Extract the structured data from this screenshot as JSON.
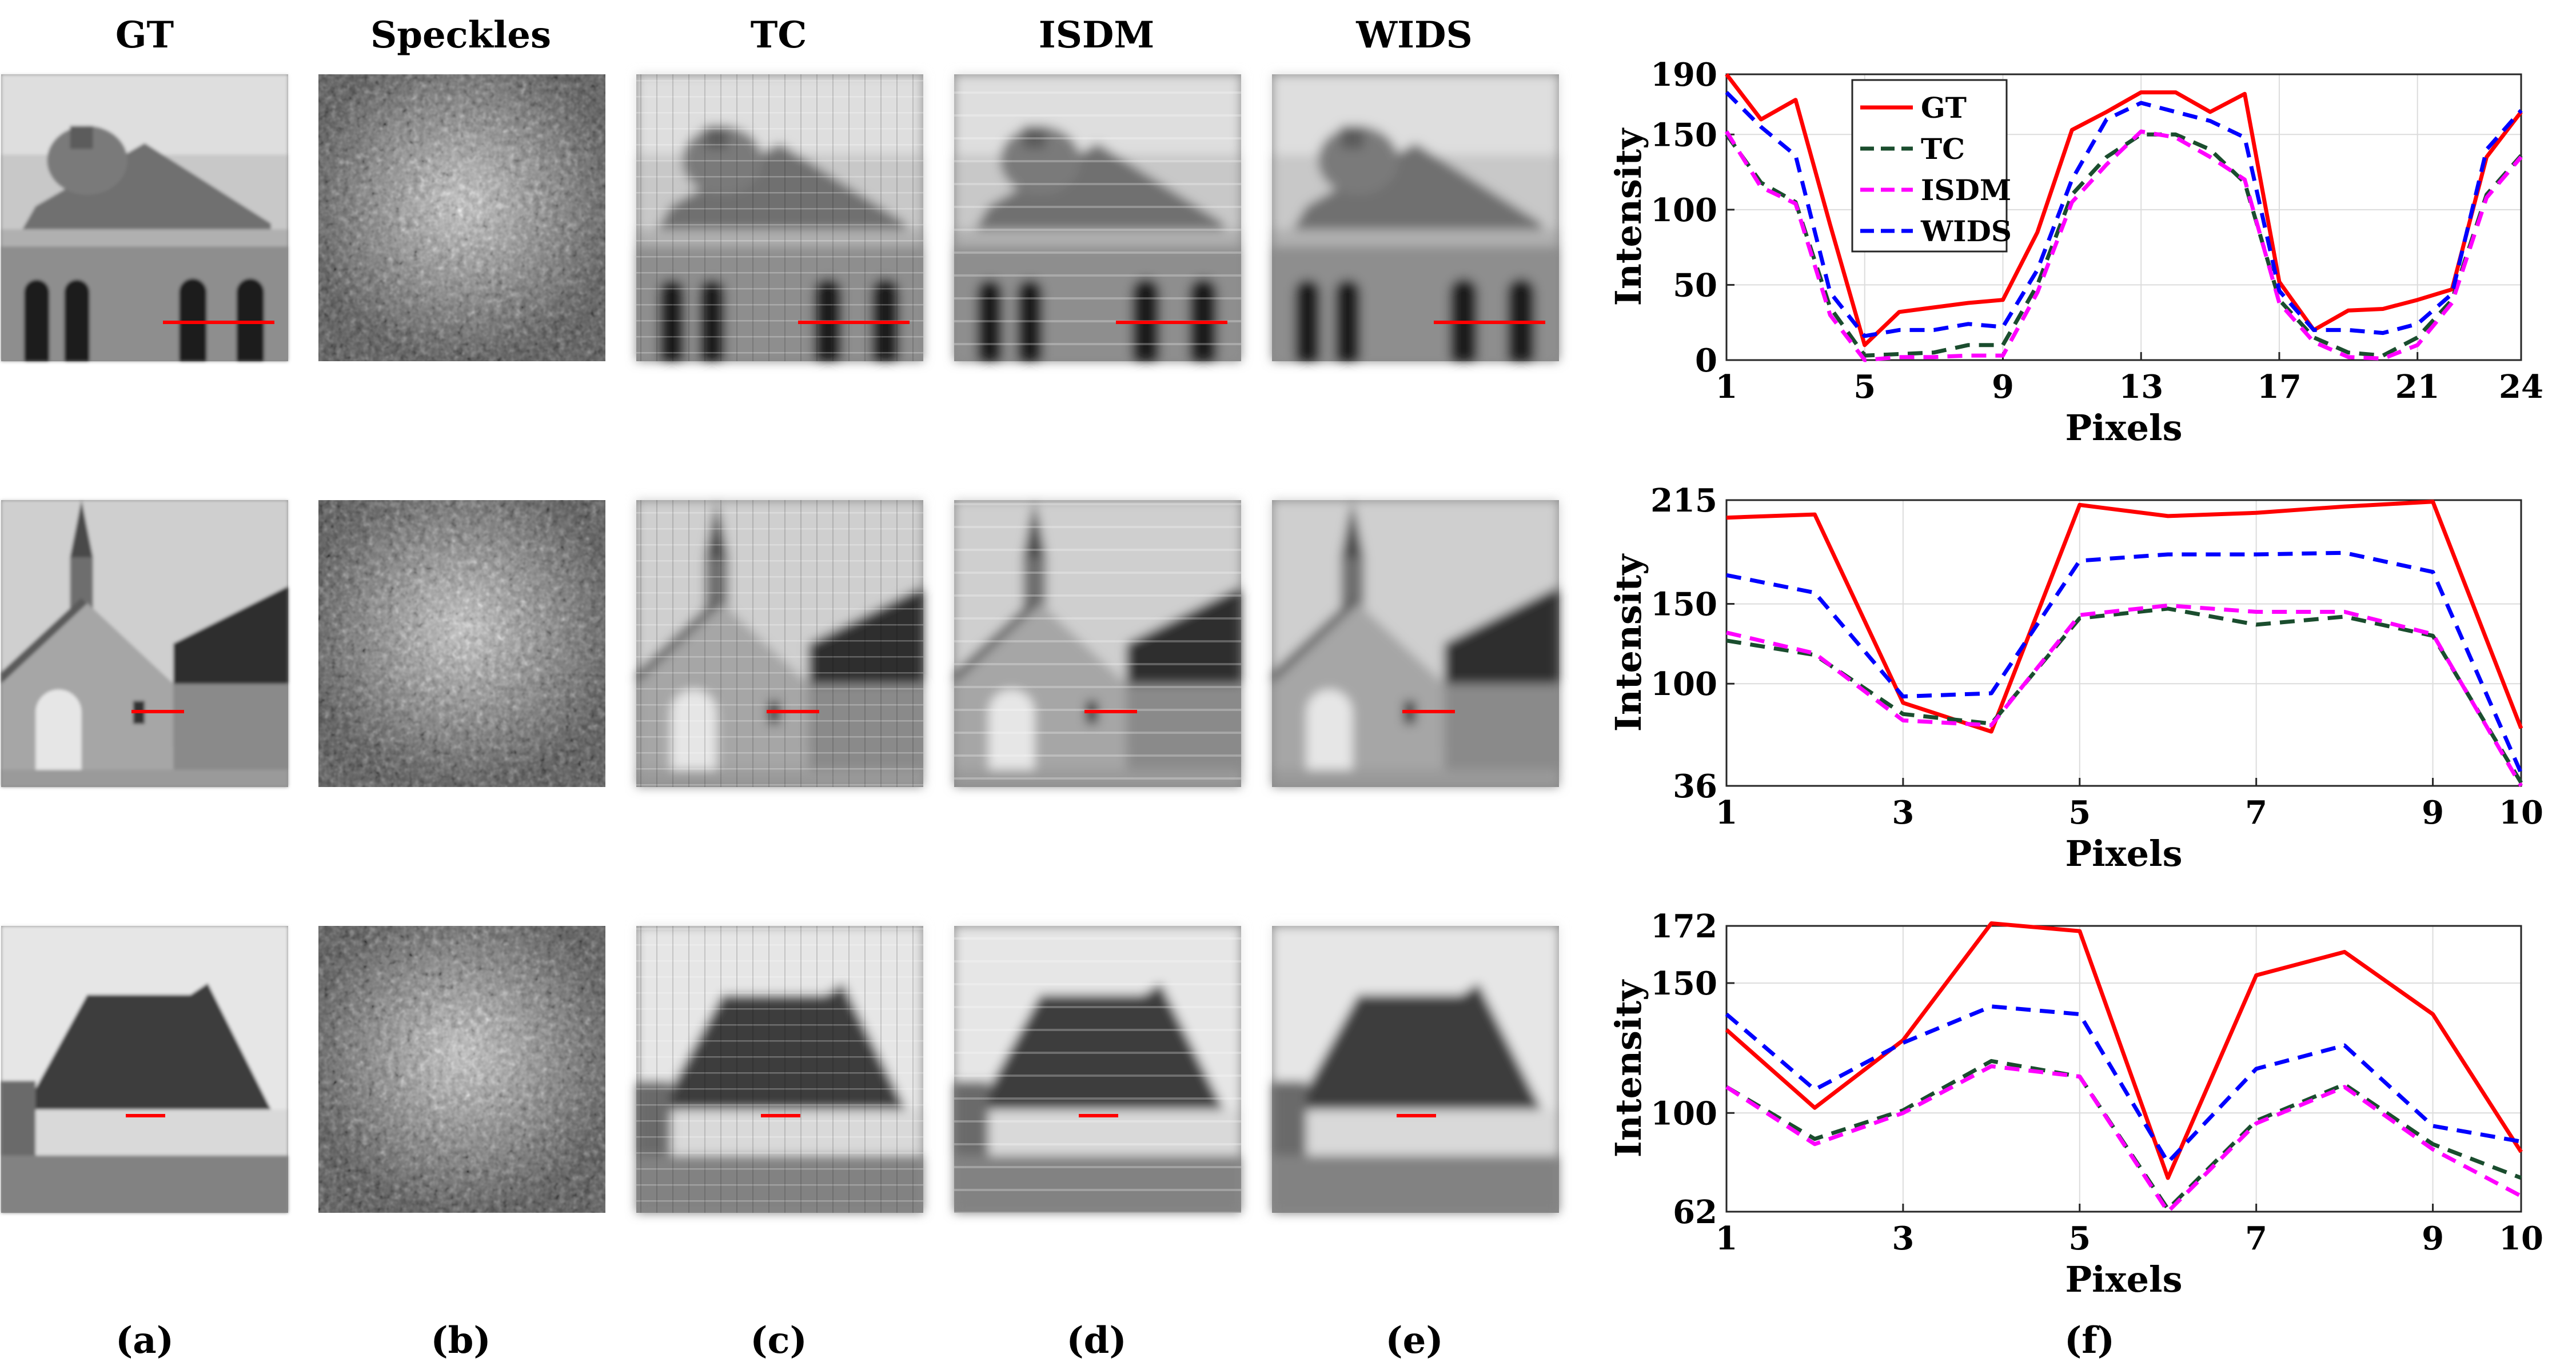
{
  "columns": [
    "GT",
    "Speckles",
    "TC",
    "ISDM",
    "WIDS"
  ],
  "panel_labels": [
    "(a)",
    "(b)",
    "(c)",
    "(d)",
    "(e)",
    "(f)"
  ],
  "colors": {
    "gt_line": "#ff0000",
    "tc_line": "#1a4d2e",
    "isdm_line": "#ff00ff",
    "wids_line": "#0000ff",
    "profile_marker": "#ff0000"
  },
  "image_rows": [
    {
      "scene": "domed stone building"
    },
    {
      "scene": "church with steeple"
    },
    {
      "scene": "chapel on lawn"
    }
  ],
  "chart_data": [
    {
      "type": "line",
      "xlabel": "Pixels",
      "ylabel": "Intensity",
      "xlim": [
        1,
        24
      ],
      "ylim": [
        0,
        190
      ],
      "xticks": [
        1,
        5,
        9,
        13,
        17,
        21,
        24
      ],
      "yticks": [
        0,
        50,
        100,
        150,
        190
      ],
      "legend": {
        "position": "top-left",
        "entries": [
          "GT",
          "TC",
          "ISDM",
          "WIDS"
        ]
      },
      "x": [
        1,
        2,
        3,
        4,
        5,
        6,
        7,
        8,
        9,
        10,
        11,
        12,
        13,
        14,
        15,
        16,
        17,
        18,
        19,
        20,
        21,
        22,
        23,
        24
      ],
      "series": [
        {
          "name": "GT",
          "style": "solid",
          "values": [
            190,
            160,
            173,
            90,
            10,
            32,
            35,
            38,
            40,
            85,
            153,
            165,
            178,
            178,
            165,
            177,
            52,
            20,
            33,
            34,
            40,
            47,
            135,
            165
          ]
        },
        {
          "name": "TC",
          "style": "dashed",
          "values": [
            150,
            118,
            105,
            35,
            3,
            4,
            5,
            10,
            10,
            50,
            110,
            135,
            150,
            150,
            140,
            118,
            40,
            15,
            5,
            3,
            15,
            40,
            110,
            136
          ]
        },
        {
          "name": "ISDM",
          "style": "dashed",
          "values": [
            152,
            115,
            104,
            30,
            0,
            2,
            2,
            3,
            3,
            45,
            105,
            130,
            152,
            148,
            135,
            120,
            38,
            12,
            2,
            1,
            10,
            38,
            108,
            135
          ]
        },
        {
          "name": "WIDS",
          "style": "dashed",
          "values": [
            178,
            155,
            136,
            45,
            16,
            20,
            20,
            24,
            22,
            60,
            120,
            160,
            171,
            165,
            159,
            148,
            46,
            20,
            20,
            18,
            24,
            44,
            140,
            166
          ]
        }
      ]
    },
    {
      "type": "line",
      "xlabel": "Pixels",
      "ylabel": "Intensity",
      "xlim": [
        1,
        10
      ],
      "ylim": [
        36,
        215
      ],
      "xticks": [
        1,
        3,
        5,
        7,
        9,
        10
      ],
      "yticks": [
        36,
        100,
        150,
        215
      ],
      "x": [
        1,
        2,
        3,
        4,
        5,
        6,
        7,
        8,
        9,
        10
      ],
      "series": [
        {
          "name": "GT",
          "style": "solid",
          "values": [
            204,
            206,
            88,
            70,
            212,
            205,
            207,
            211,
            214,
            72
          ]
        },
        {
          "name": "TC",
          "style": "dashed",
          "values": [
            127,
            118,
            81,
            75,
            141,
            147,
            137,
            142,
            130,
            38
          ]
        },
        {
          "name": "ISDM",
          "style": "dashed",
          "values": [
            132,
            119,
            77,
            74,
            143,
            149,
            145,
            145,
            131,
            36
          ]
        },
        {
          "name": "WIDS",
          "style": "dashed",
          "values": [
            168,
            157,
            92,
            94,
            177,
            181,
            181,
            182,
            170,
            44
          ]
        }
      ]
    },
    {
      "type": "line",
      "xlabel": "Pixels",
      "ylabel": "Intensity",
      "xlim": [
        1,
        10
      ],
      "ylim": [
        62,
        172
      ],
      "xticks": [
        1,
        3,
        5,
        7,
        9,
        10
      ],
      "yticks": [
        62,
        100,
        150,
        172
      ],
      "x": [
        1,
        2,
        3,
        4,
        5,
        6,
        7,
        8,
        9,
        10
      ],
      "series": [
        {
          "name": "GT",
          "style": "solid",
          "values": [
            132,
            102,
            128,
            173,
            170,
            75,
            153,
            162,
            138,
            85
          ]
        },
        {
          "name": "TC",
          "style": "dashed",
          "values": [
            110,
            90,
            101,
            120,
            114,
            63,
            97,
            111,
            88,
            75
          ]
        },
        {
          "name": "ISDM",
          "style": "dashed",
          "values": [
            110,
            88,
            100,
            118,
            114,
            62,
            96,
            110,
            86,
            68
          ]
        },
        {
          "name": "WIDS",
          "style": "dashed",
          "values": [
            138,
            109,
            127,
            141,
            138,
            81,
            117,
            126,
            95,
            89
          ]
        }
      ]
    }
  ]
}
